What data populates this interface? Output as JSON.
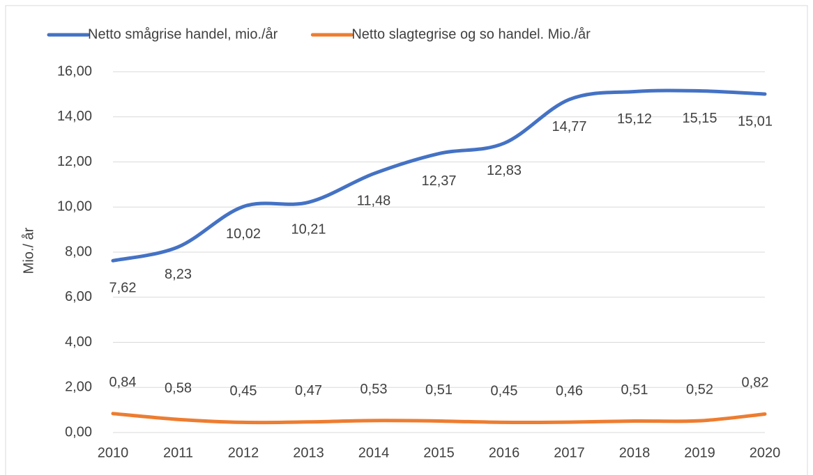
{
  "chart_data": {
    "type": "line",
    "y_label": "Mio./ år",
    "x": [
      2010,
      2011,
      2012,
      2013,
      2014,
      2015,
      2016,
      2017,
      2018,
      2019,
      2020
    ],
    "xlim": [
      2010,
      2020
    ],
    "xticks": [
      2010,
      2011,
      2012,
      2013,
      2014,
      2015,
      2016,
      2017,
      2018,
      2019,
      2020
    ],
    "ylim": [
      0,
      16
    ],
    "yticks": [
      {
        "value": 0,
        "label": "0,00"
      },
      {
        "value": 2,
        "label": "2,00"
      },
      {
        "value": 4,
        "label": "4,00"
      },
      {
        "value": 6,
        "label": "6,00"
      },
      {
        "value": 8,
        "label": "8,00"
      },
      {
        "value": 10,
        "label": "10,00"
      },
      {
        "value": 12,
        "label": "12,00"
      },
      {
        "value": 14,
        "label": "14,00"
      },
      {
        "value": 16,
        "label": "16,00"
      }
    ],
    "grid": true,
    "legend": "top",
    "series": [
      {
        "name": "Netto smågrise handel, mio./år",
        "color": "#4472c4",
        "values": [
          7.62,
          8.23,
          10.02,
          10.21,
          11.48,
          12.37,
          12.83,
          14.77,
          15.12,
          15.15,
          15.01
        ],
        "value_labels": [
          "7,62",
          "8,23",
          "10,02",
          "10,21",
          "11,48",
          "12,37",
          "12,83",
          "14,77",
          "15,12",
          "15,15",
          "15,01"
        ],
        "label_position": "below"
      },
      {
        "name": "Netto slagtegrise og so handel. Mio./år",
        "color": "#ed7d31",
        "values": [
          0.84,
          0.58,
          0.45,
          0.47,
          0.53,
          0.51,
          0.45,
          0.46,
          0.51,
          0.52,
          0.82
        ],
        "value_labels": [
          "0,84",
          "0,58",
          "0,45",
          "0,47",
          "0,53",
          "0,51",
          "0,45",
          "0,46",
          "0,51",
          "0,52",
          "0,82"
        ],
        "label_position": "above"
      }
    ]
  }
}
